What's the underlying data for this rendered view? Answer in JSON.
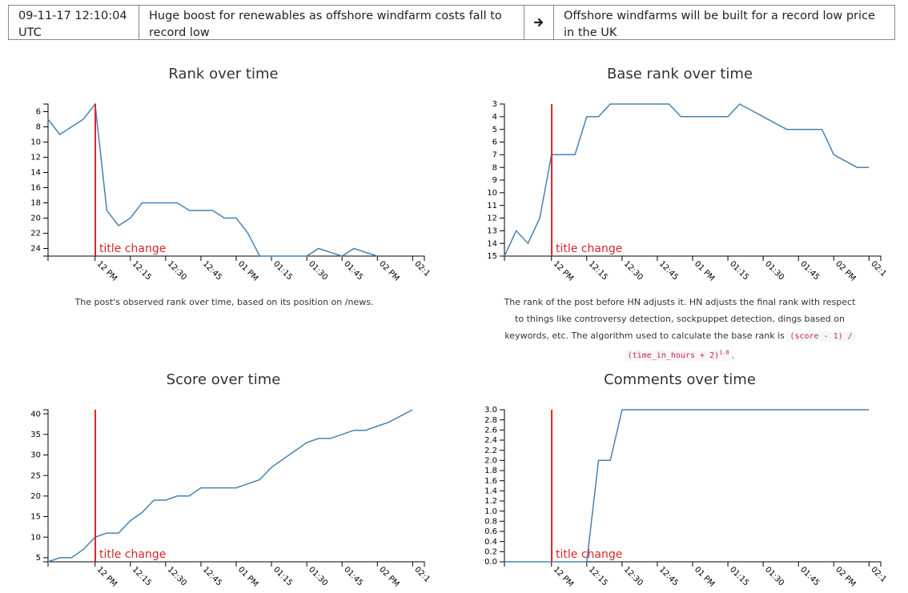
{
  "header": {
    "timestamp": "09-11-17 12:10:04 UTC",
    "old_title": "Huge boost for renewables as offshore windfarm costs fall to record low",
    "arrow_icon": "arrow-right-icon",
    "new_title": "Offshore windfarms will be built for a record low price in the UK"
  },
  "colors": {
    "line": "#4682b4",
    "title_change": "#d62728"
  },
  "captions": {
    "rank": "The post's observed rank over time, based on its position on /news.",
    "base_rank_text": "The rank of the post before HN adjusts it. HN adjusts the final rank with respect to things like controversy detection, sockpuppet detection, dings based on keywords, etc. The algorithm used to calculate the base rank is",
    "formula_part1": "(score - 1) /",
    "formula_part2": "(time_in_hours + 2)",
    "formula_exponent": "1.8",
    "formula_end": "."
  },
  "chart_data": [
    {
      "id": "rank",
      "type": "line",
      "title": "Rank over time",
      "x_ticks": [
        "12 PM",
        "12:15",
        "12:30",
        "12:45",
        "01 PM",
        "01:15",
        "01:30",
        "01:45",
        "02 PM",
        "02:1"
      ],
      "x_tick_minutes": [
        0,
        15,
        30,
        45,
        60,
        75,
        90,
        105,
        120,
        135
      ],
      "xlim_minutes": [
        -20,
        140
      ],
      "y_inverted": true,
      "ylim": [
        5,
        25
      ],
      "y_ticks": [
        6,
        8,
        10,
        12,
        14,
        16,
        18,
        20,
        22,
        24
      ],
      "title_change_minute": 0.1,
      "title_change_label": "title change",
      "x_minutes": [
        -20,
        -15,
        -10,
        -5,
        0,
        5,
        10,
        15,
        20,
        25,
        30,
        35,
        40,
        45,
        50,
        55,
        60,
        65,
        70,
        75,
        80,
        85,
        90,
        95,
        100,
        105,
        110,
        115,
        120
      ],
      "values": [
        7,
        9,
        8,
        7,
        5,
        19,
        21,
        20,
        18,
        18,
        18,
        18,
        19,
        19,
        19,
        20,
        20,
        22,
        25,
        25,
        25,
        25,
        25,
        24,
        24.5,
        25,
        24,
        24.5,
        25
      ]
    },
    {
      "id": "base_rank",
      "type": "line",
      "title": "Base rank over time",
      "x_ticks": [
        "12 PM",
        "12:15",
        "12:30",
        "12:45",
        "01 PM",
        "01:15",
        "01:30",
        "01:45",
        "02 PM",
        "02:1"
      ],
      "x_tick_minutes": [
        0,
        15,
        30,
        45,
        60,
        75,
        90,
        105,
        120,
        135
      ],
      "xlim_minutes": [
        -20,
        140
      ],
      "y_inverted": true,
      "ylim": [
        3,
        15
      ],
      "y_ticks": [
        3,
        4,
        5,
        6,
        7,
        8,
        9,
        10,
        11,
        12,
        13,
        14,
        15
      ],
      "title_change_minute": 0.1,
      "title_change_label": "title change",
      "x_minutes": [
        -20,
        -15,
        -10,
        -5,
        0,
        5,
        10,
        15,
        20,
        25,
        30,
        35,
        40,
        45,
        50,
        55,
        60,
        65,
        70,
        75,
        80,
        85,
        90,
        95,
        100,
        105,
        110,
        115,
        120,
        125,
        130,
        135
      ],
      "values": [
        15,
        13,
        14,
        12,
        7,
        7,
        7,
        4,
        4,
        3,
        3,
        3,
        3,
        3,
        3,
        4,
        4,
        4,
        4,
        4,
        3,
        3.5,
        4,
        4.5,
        5,
        5,
        5,
        5,
        7,
        7.5,
        8,
        8
      ]
    },
    {
      "id": "score",
      "type": "line",
      "title": "Score over time",
      "x_ticks": [
        "12 PM",
        "12:15",
        "12:30",
        "12:45",
        "01 PM",
        "01:15",
        "01:30",
        "01:45",
        "02 PM",
        "02:1"
      ],
      "x_tick_minutes": [
        0,
        15,
        30,
        45,
        60,
        75,
        90,
        105,
        120,
        135
      ],
      "xlim_minutes": [
        -20,
        140
      ],
      "y_inverted": false,
      "ylim": [
        4,
        41
      ],
      "y_ticks": [
        5,
        10,
        15,
        20,
        25,
        30,
        35,
        40
      ],
      "title_change_minute": 0.1,
      "title_change_label": "title change",
      "x_minutes": [
        -20,
        -15,
        -10,
        -5,
        0,
        5,
        10,
        15,
        20,
        25,
        30,
        35,
        40,
        45,
        50,
        55,
        60,
        65,
        70,
        75,
        80,
        85,
        90,
        95,
        100,
        105,
        110,
        115,
        120,
        125,
        130,
        135
      ],
      "values": [
        4,
        5,
        5,
        7,
        10,
        11,
        11,
        14,
        16,
        19,
        19,
        20,
        20,
        22,
        22,
        22,
        22,
        23,
        24,
        27,
        29,
        31,
        33,
        34,
        34,
        35,
        36,
        36,
        37,
        38,
        39.5,
        41
      ]
    },
    {
      "id": "comments",
      "type": "line",
      "title": "Comments over time",
      "x_ticks": [
        "12 PM",
        "12:15",
        "12:30",
        "12:45",
        "01 PM",
        "01:15",
        "01:30",
        "01:45",
        "02 PM",
        "02:1"
      ],
      "x_tick_minutes": [
        0,
        15,
        30,
        45,
        60,
        75,
        90,
        105,
        120,
        135
      ],
      "xlim_minutes": [
        -20,
        140
      ],
      "y_inverted": false,
      "ylim": [
        0,
        3
      ],
      "y_ticks": [
        0.0,
        0.2,
        0.4,
        0.6,
        0.8,
        1.0,
        1.2,
        1.4,
        1.6,
        1.8,
        2.0,
        2.2,
        2.4,
        2.6,
        2.8,
        3.0
      ],
      "y_decimals": 1,
      "title_change_minute": 0.1,
      "title_change_label": "title change",
      "x_minutes": [
        -20,
        -15,
        -10,
        -5,
        0,
        5,
        10,
        15,
        20,
        25,
        30,
        35,
        40,
        45,
        50,
        55,
        60,
        65,
        70,
        75,
        80,
        85,
        90,
        95,
        100,
        105,
        110,
        115,
        120,
        125,
        130,
        135
      ],
      "values": [
        0,
        0,
        0,
        0,
        0,
        0,
        0,
        0,
        2,
        2,
        3,
        3,
        3,
        3,
        3,
        3,
        3,
        3,
        3,
        3,
        3,
        3,
        3,
        3,
        3,
        3,
        3,
        3,
        3,
        3,
        3,
        3
      ]
    }
  ]
}
